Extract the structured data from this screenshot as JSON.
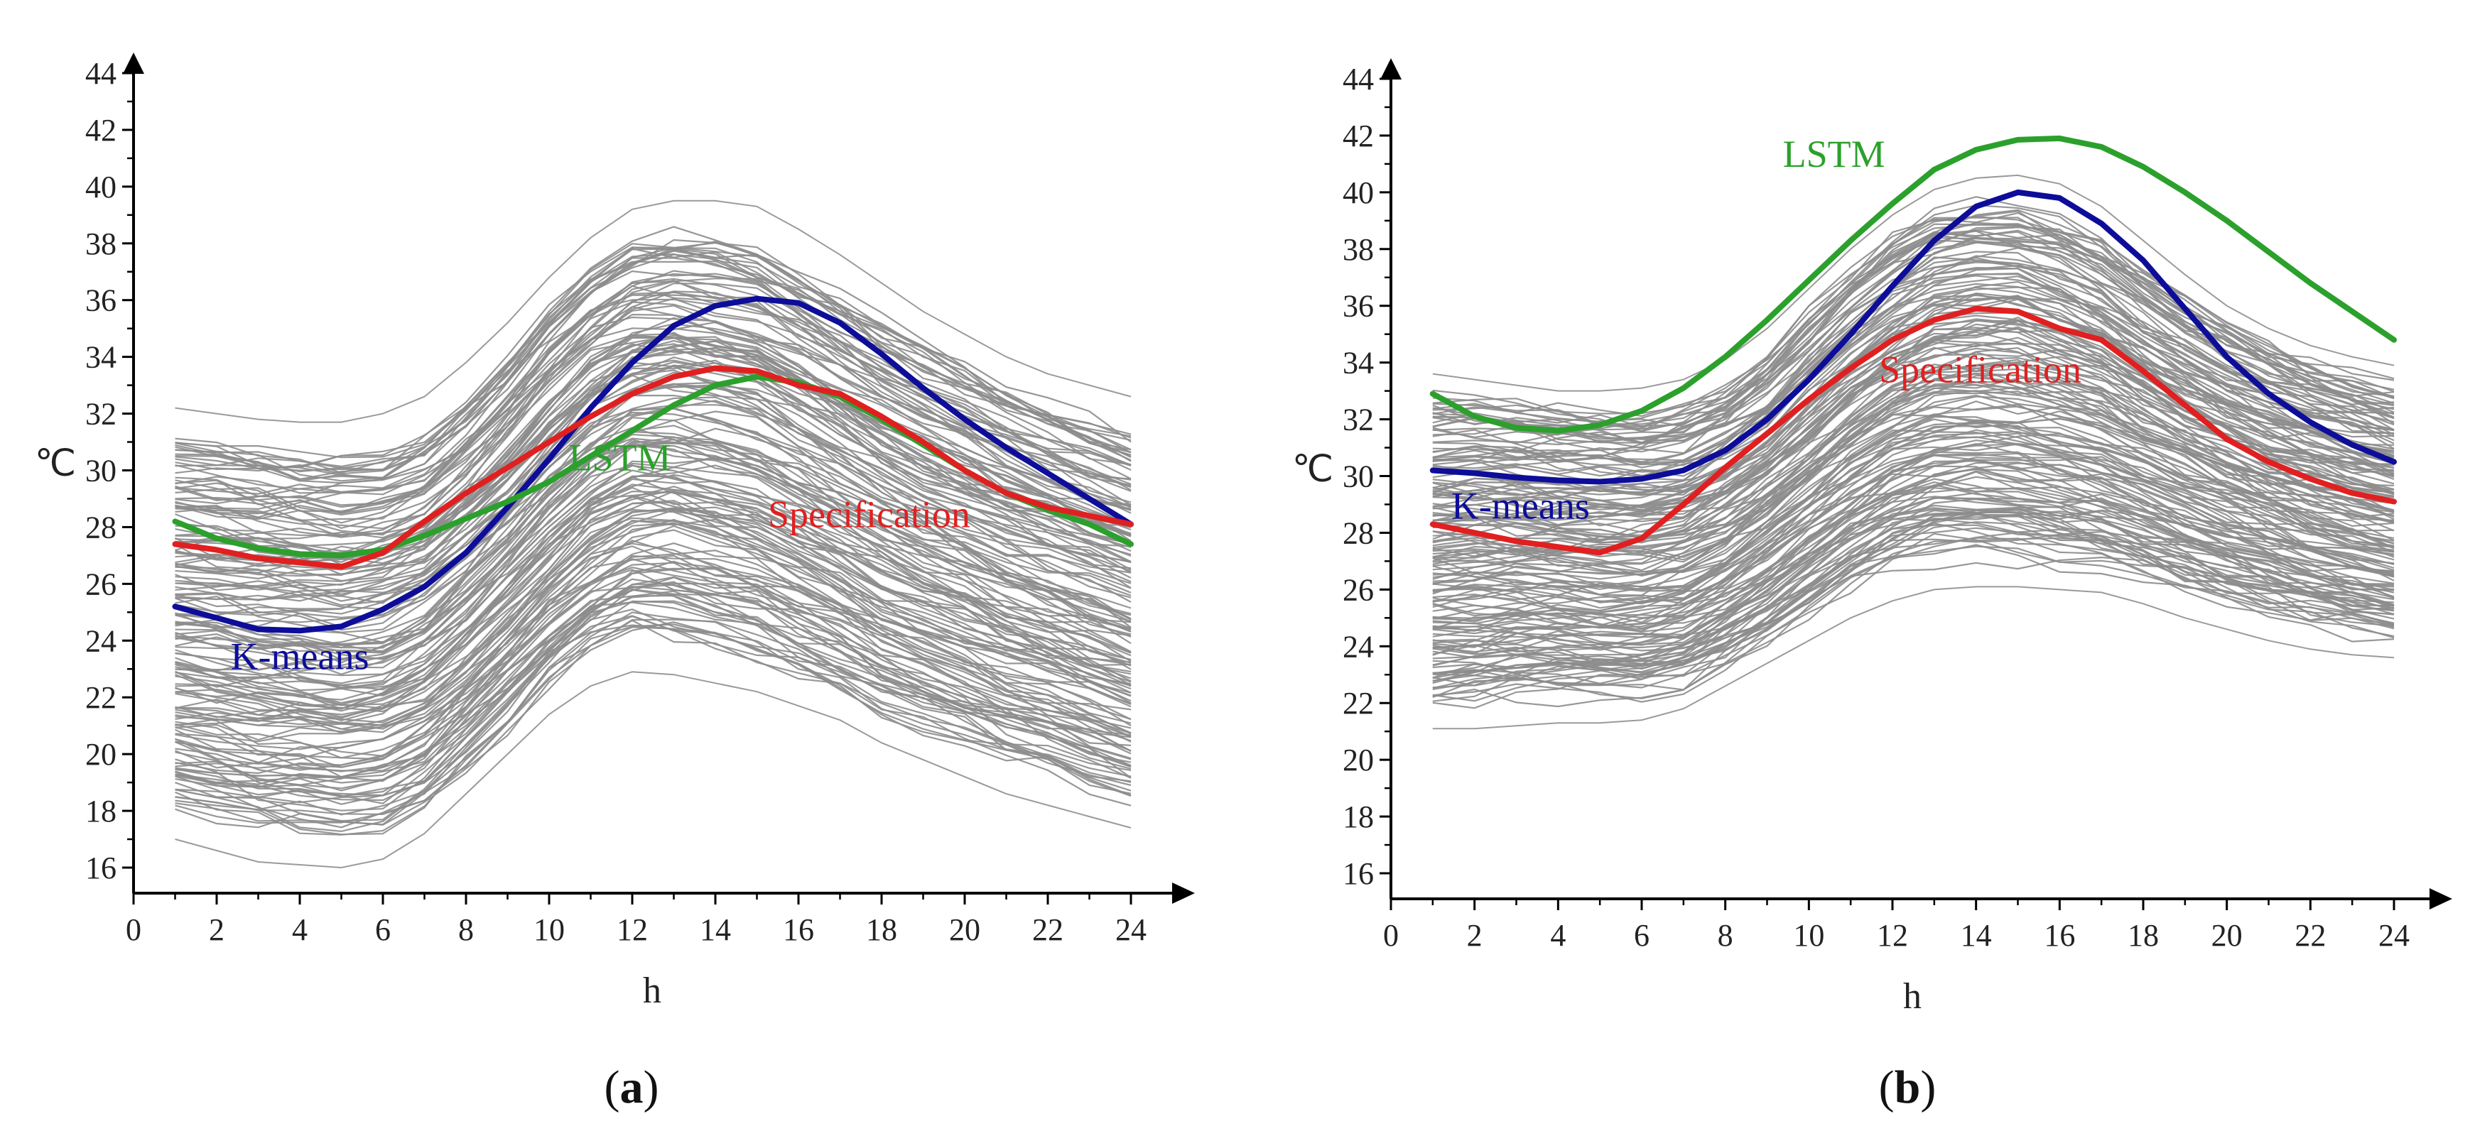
{
  "chart_data": [
    {
      "type": "line",
      "panel_label_open": "(",
      "panel_label_letter": "a",
      "panel_label_close": ")",
      "xlabel": "h",
      "ylabel": "℃",
      "xlim": [
        0,
        24
      ],
      "ylim": [
        15,
        44
      ],
      "xticks": [
        0,
        2,
        4,
        6,
        8,
        10,
        12,
        14,
        16,
        18,
        20,
        22,
        24
      ],
      "yticks": [
        16,
        18,
        20,
        22,
        24,
        26,
        28,
        30,
        32,
        34,
        36,
        38,
        40,
        42,
        44
      ],
      "background_band": {
        "description_values": "approximate envelope of many gray daily temperature curves",
        "hours": [
          1,
          2,
          3,
          4,
          5,
          6,
          7,
          8,
          9,
          10,
          11,
          12,
          13,
          14,
          15,
          16,
          17,
          18,
          19,
          20,
          21,
          22,
          23,
          24
        ],
        "low": [
          17.0,
          16.6,
          16.2,
          16.1,
          16.0,
          16.3,
          17.2,
          18.6,
          20.0,
          21.4,
          22.4,
          22.9,
          22.8,
          22.5,
          22.2,
          21.7,
          21.2,
          20.4,
          19.8,
          19.2,
          18.6,
          18.2,
          17.8,
          17.4
        ],
        "high": [
          32.2,
          32.0,
          31.8,
          31.7,
          31.7,
          32.0,
          32.6,
          33.8,
          35.2,
          36.8,
          38.2,
          39.2,
          39.5,
          39.5,
          39.3,
          38.5,
          37.6,
          36.6,
          35.6,
          34.8,
          34.0,
          33.4,
          33.0,
          32.6
        ]
      },
      "series": [
        {
          "name": "K-means",
          "color": "#0d0d9a",
          "x": [
            1,
            2,
            3,
            4,
            5,
            6,
            7,
            8,
            9,
            10,
            11,
            12,
            13,
            14,
            15,
            16,
            17,
            18,
            19,
            20,
            21,
            22,
            23,
            24
          ],
          "y": [
            25.2,
            24.8,
            24.4,
            24.35,
            24.5,
            25.1,
            25.9,
            27.1,
            28.7,
            30.4,
            32.2,
            33.8,
            35.1,
            35.8,
            36.05,
            35.9,
            35.2,
            34.1,
            32.9,
            31.8,
            30.8,
            29.9,
            29.0,
            28.1
          ]
        },
        {
          "name": "LSTM",
          "color": "#2ca02c",
          "x": [
            1,
            2,
            3,
            4,
            5,
            6,
            7,
            8,
            9,
            10,
            11,
            12,
            13,
            14,
            15,
            16,
            17,
            18,
            19,
            20,
            21,
            22,
            23,
            24
          ],
          "y": [
            28.2,
            27.6,
            27.25,
            27.05,
            27.0,
            27.2,
            27.7,
            28.3,
            28.9,
            29.6,
            30.5,
            31.4,
            32.3,
            33.0,
            33.3,
            33.1,
            32.6,
            31.8,
            30.9,
            30.0,
            29.2,
            28.6,
            28.1,
            27.4
          ]
        },
        {
          "name": "Specification",
          "color": "#e02020",
          "x": [
            1,
            2,
            3,
            4,
            5,
            6,
            7,
            8,
            9,
            10,
            11,
            12,
            13,
            14,
            15,
            16,
            17,
            18,
            19,
            20,
            21,
            22,
            23,
            24
          ],
          "y": [
            27.4,
            27.2,
            26.9,
            26.75,
            26.6,
            27.1,
            28.2,
            29.2,
            30.1,
            31.0,
            31.9,
            32.7,
            33.3,
            33.6,
            33.5,
            33.0,
            32.7,
            31.9,
            31.0,
            30.0,
            29.2,
            28.7,
            28.4,
            28.1
          ]
        }
      ],
      "annotations": [
        {
          "text": "K-means",
          "color": "#0d0d9a",
          "x": 4.0,
          "y": 23.0
        },
        {
          "text": "LSTM",
          "color": "#2ca02c",
          "x": 11.7,
          "y": 30.0
        },
        {
          "text": "Specification",
          "color": "#e02020",
          "x": 17.7,
          "y": 28.0
        }
      ]
    },
    {
      "type": "line",
      "panel_label_open": "(",
      "panel_label_letter": "b",
      "panel_label_close": ")",
      "xlabel": "h",
      "ylabel": "℃",
      "xlim": [
        0,
        24
      ],
      "ylim": [
        15,
        44
      ],
      "xticks": [
        0,
        2,
        4,
        6,
        8,
        10,
        12,
        14,
        16,
        18,
        20,
        22,
        24
      ],
      "yticks": [
        16,
        18,
        20,
        22,
        24,
        26,
        28,
        30,
        32,
        34,
        36,
        38,
        40,
        42,
        44
      ],
      "background_band": {
        "description_values": "approximate envelope of many gray daily temperature curves",
        "hours": [
          1,
          2,
          3,
          4,
          5,
          6,
          7,
          8,
          9,
          10,
          11,
          12,
          13,
          14,
          15,
          16,
          17,
          18,
          19,
          20,
          21,
          22,
          23,
          24
        ],
        "low": [
          21.1,
          21.1,
          21.2,
          21.3,
          21.3,
          21.4,
          21.8,
          22.6,
          23.4,
          24.2,
          25.0,
          25.6,
          26.0,
          26.1,
          26.1,
          26.0,
          25.9,
          25.5,
          25.0,
          24.6,
          24.2,
          23.9,
          23.7,
          23.6
        ],
        "high": [
          33.6,
          33.4,
          33.2,
          33.0,
          33.0,
          33.1,
          33.4,
          34.1,
          35.2,
          36.6,
          38.0,
          39.2,
          40.1,
          40.5,
          40.6,
          40.3,
          39.5,
          38.3,
          37.1,
          36.0,
          35.2,
          34.6,
          34.2,
          33.9
        ]
      },
      "series": [
        {
          "name": "K-means",
          "color": "#0d0d9a",
          "x": [
            1,
            2,
            3,
            4,
            5,
            6,
            7,
            8,
            9,
            10,
            11,
            12,
            13,
            14,
            15,
            16,
            17,
            18,
            19,
            20,
            21,
            22,
            23,
            24
          ],
          "y": [
            30.2,
            30.1,
            29.95,
            29.85,
            29.8,
            29.9,
            30.2,
            30.9,
            32.0,
            33.4,
            35.0,
            36.7,
            38.3,
            39.5,
            40.0,
            39.8,
            38.9,
            37.6,
            35.9,
            34.2,
            32.9,
            31.9,
            31.1,
            30.5
          ]
        },
        {
          "name": "LSTM",
          "color": "#2ca02c",
          "x": [
            1,
            2,
            3,
            4,
            5,
            6,
            7,
            8,
            9,
            10,
            11,
            12,
            13,
            14,
            15,
            16,
            17,
            18,
            19,
            20,
            21,
            22,
            23,
            24
          ],
          "y": [
            32.9,
            32.1,
            31.7,
            31.6,
            31.8,
            32.3,
            33.1,
            34.2,
            35.5,
            36.9,
            38.3,
            39.6,
            40.8,
            41.5,
            41.85,
            41.9,
            41.6,
            40.9,
            40.0,
            39.0,
            37.9,
            36.8,
            35.8,
            34.8
          ]
        },
        {
          "name": "Specification",
          "color": "#e02020",
          "x": [
            1,
            2,
            3,
            4,
            5,
            6,
            7,
            8,
            9,
            10,
            11,
            12,
            13,
            14,
            15,
            16,
            17,
            18,
            19,
            20,
            21,
            22,
            23,
            24
          ],
          "y": [
            28.3,
            28.0,
            27.7,
            27.5,
            27.3,
            27.8,
            29.0,
            30.3,
            31.5,
            32.7,
            33.8,
            34.8,
            35.5,
            35.9,
            35.8,
            35.2,
            34.8,
            33.7,
            32.5,
            31.3,
            30.5,
            29.9,
            29.4,
            29.1
          ]
        }
      ],
      "annotations": [
        {
          "text": "K-means",
          "color": "#0d0d9a",
          "x": 3.1,
          "y": 28.5
        },
        {
          "text": "LSTM",
          "color": "#2ca02c",
          "x": 10.6,
          "y": 40.9
        },
        {
          "text": "Specification",
          "color": "#e02020",
          "x": 14.1,
          "y": 33.3
        }
      ]
    }
  ]
}
